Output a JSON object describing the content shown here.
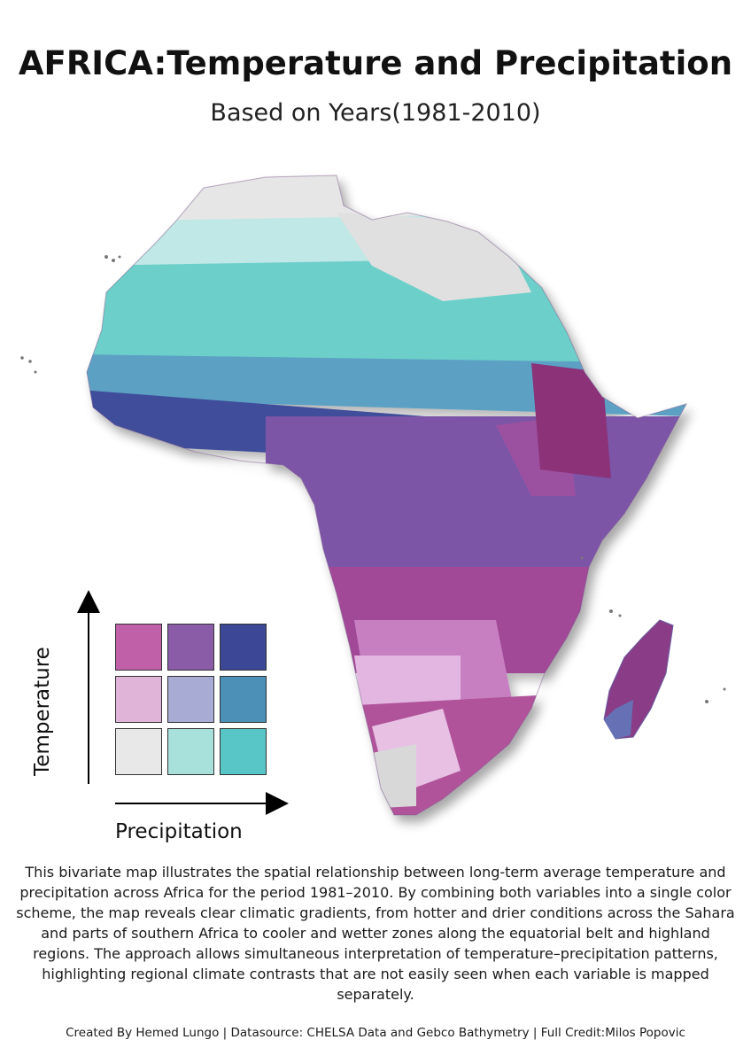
{
  "title": "AFRICA:Temperature and Precipitation",
  "subtitle": "Based on Years(1981-2010)",
  "legend": {
    "y_label": "Temperature",
    "x_label": "Precipitation",
    "colors": [
      [
        "#c060a8",
        "#8a5ca8",
        "#3c4896"
      ],
      [
        "#e0b4d8",
        "#a8acd4",
        "#4c90b8"
      ],
      [
        "#e8e8e8",
        "#a8e0dc",
        "#58c6c6"
      ]
    ]
  },
  "description": "This bivariate map illustrates the spatial relationship between long-term average temperature and precipitation across Africa for the period 1981–2010. By combining both variables into a single color scheme, the map reveals clear climatic gradients, from hotter and drier conditions across the Sahara and parts of southern Africa to cooler and wetter zones along the equatorial belt and highland regions. The approach allows simultaneous interpretation of temperature–precipitation patterns, highlighting regional climate contrasts that are not easily seen when each variable is mapped separately.",
  "credits": "Created By Hemed Lungo | Datasource: CHELSA Data and Gebco Bathymetry | Full Credit:Milos Popovic"
}
